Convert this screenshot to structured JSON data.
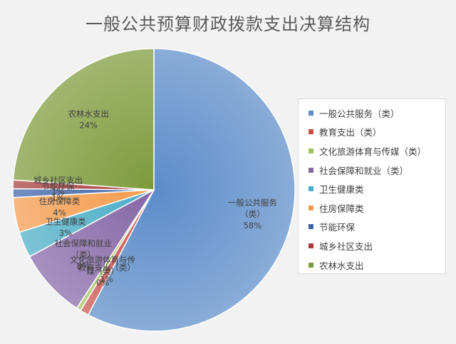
{
  "chart_data": {
    "type": "pie",
    "title": "一般公共预算财政拨款支出决算结构",
    "categories": [
      "一般公共服务（类）",
      "教育支出（类）",
      "文化旅游体育与传媒（类）",
      "社会保障和就业（类）",
      "卫生健康类",
      "住房保障类",
      "节能环保",
      "城乡社区支出",
      "农林水支出"
    ],
    "values": [
      58,
      1,
      0,
      8,
      3,
      4,
      1,
      1,
      24
    ],
    "value_labels": [
      "58%",
      "1%",
      "0%",
      "8%",
      "3%",
      "4%",
      "1%",
      "1%",
      "24%"
    ],
    "slice_labels": [
      [
        "一般公共服务",
        "（类）"
      ],
      [
        "教育支出（类）"
      ],
      [
        "文化旅游体育与传",
        "媒（类）"
      ],
      [
        "社会保障和就业",
        "（类）"
      ],
      [
        "卫生健康类"
      ],
      [
        "住房保障类"
      ],
      [
        "节能环保"
      ],
      [
        "城乡社区支出"
      ],
      [
        "农林水支出"
      ]
    ],
    "colors": [
      "#5b8cc9",
      "#c9504a",
      "#a2c15c",
      "#8566a6",
      "#4aadc6",
      "#f59a4a",
      "#3d64a8",
      "#a83d3a",
      "#7d9a3a"
    ],
    "legend_position": "right"
  }
}
